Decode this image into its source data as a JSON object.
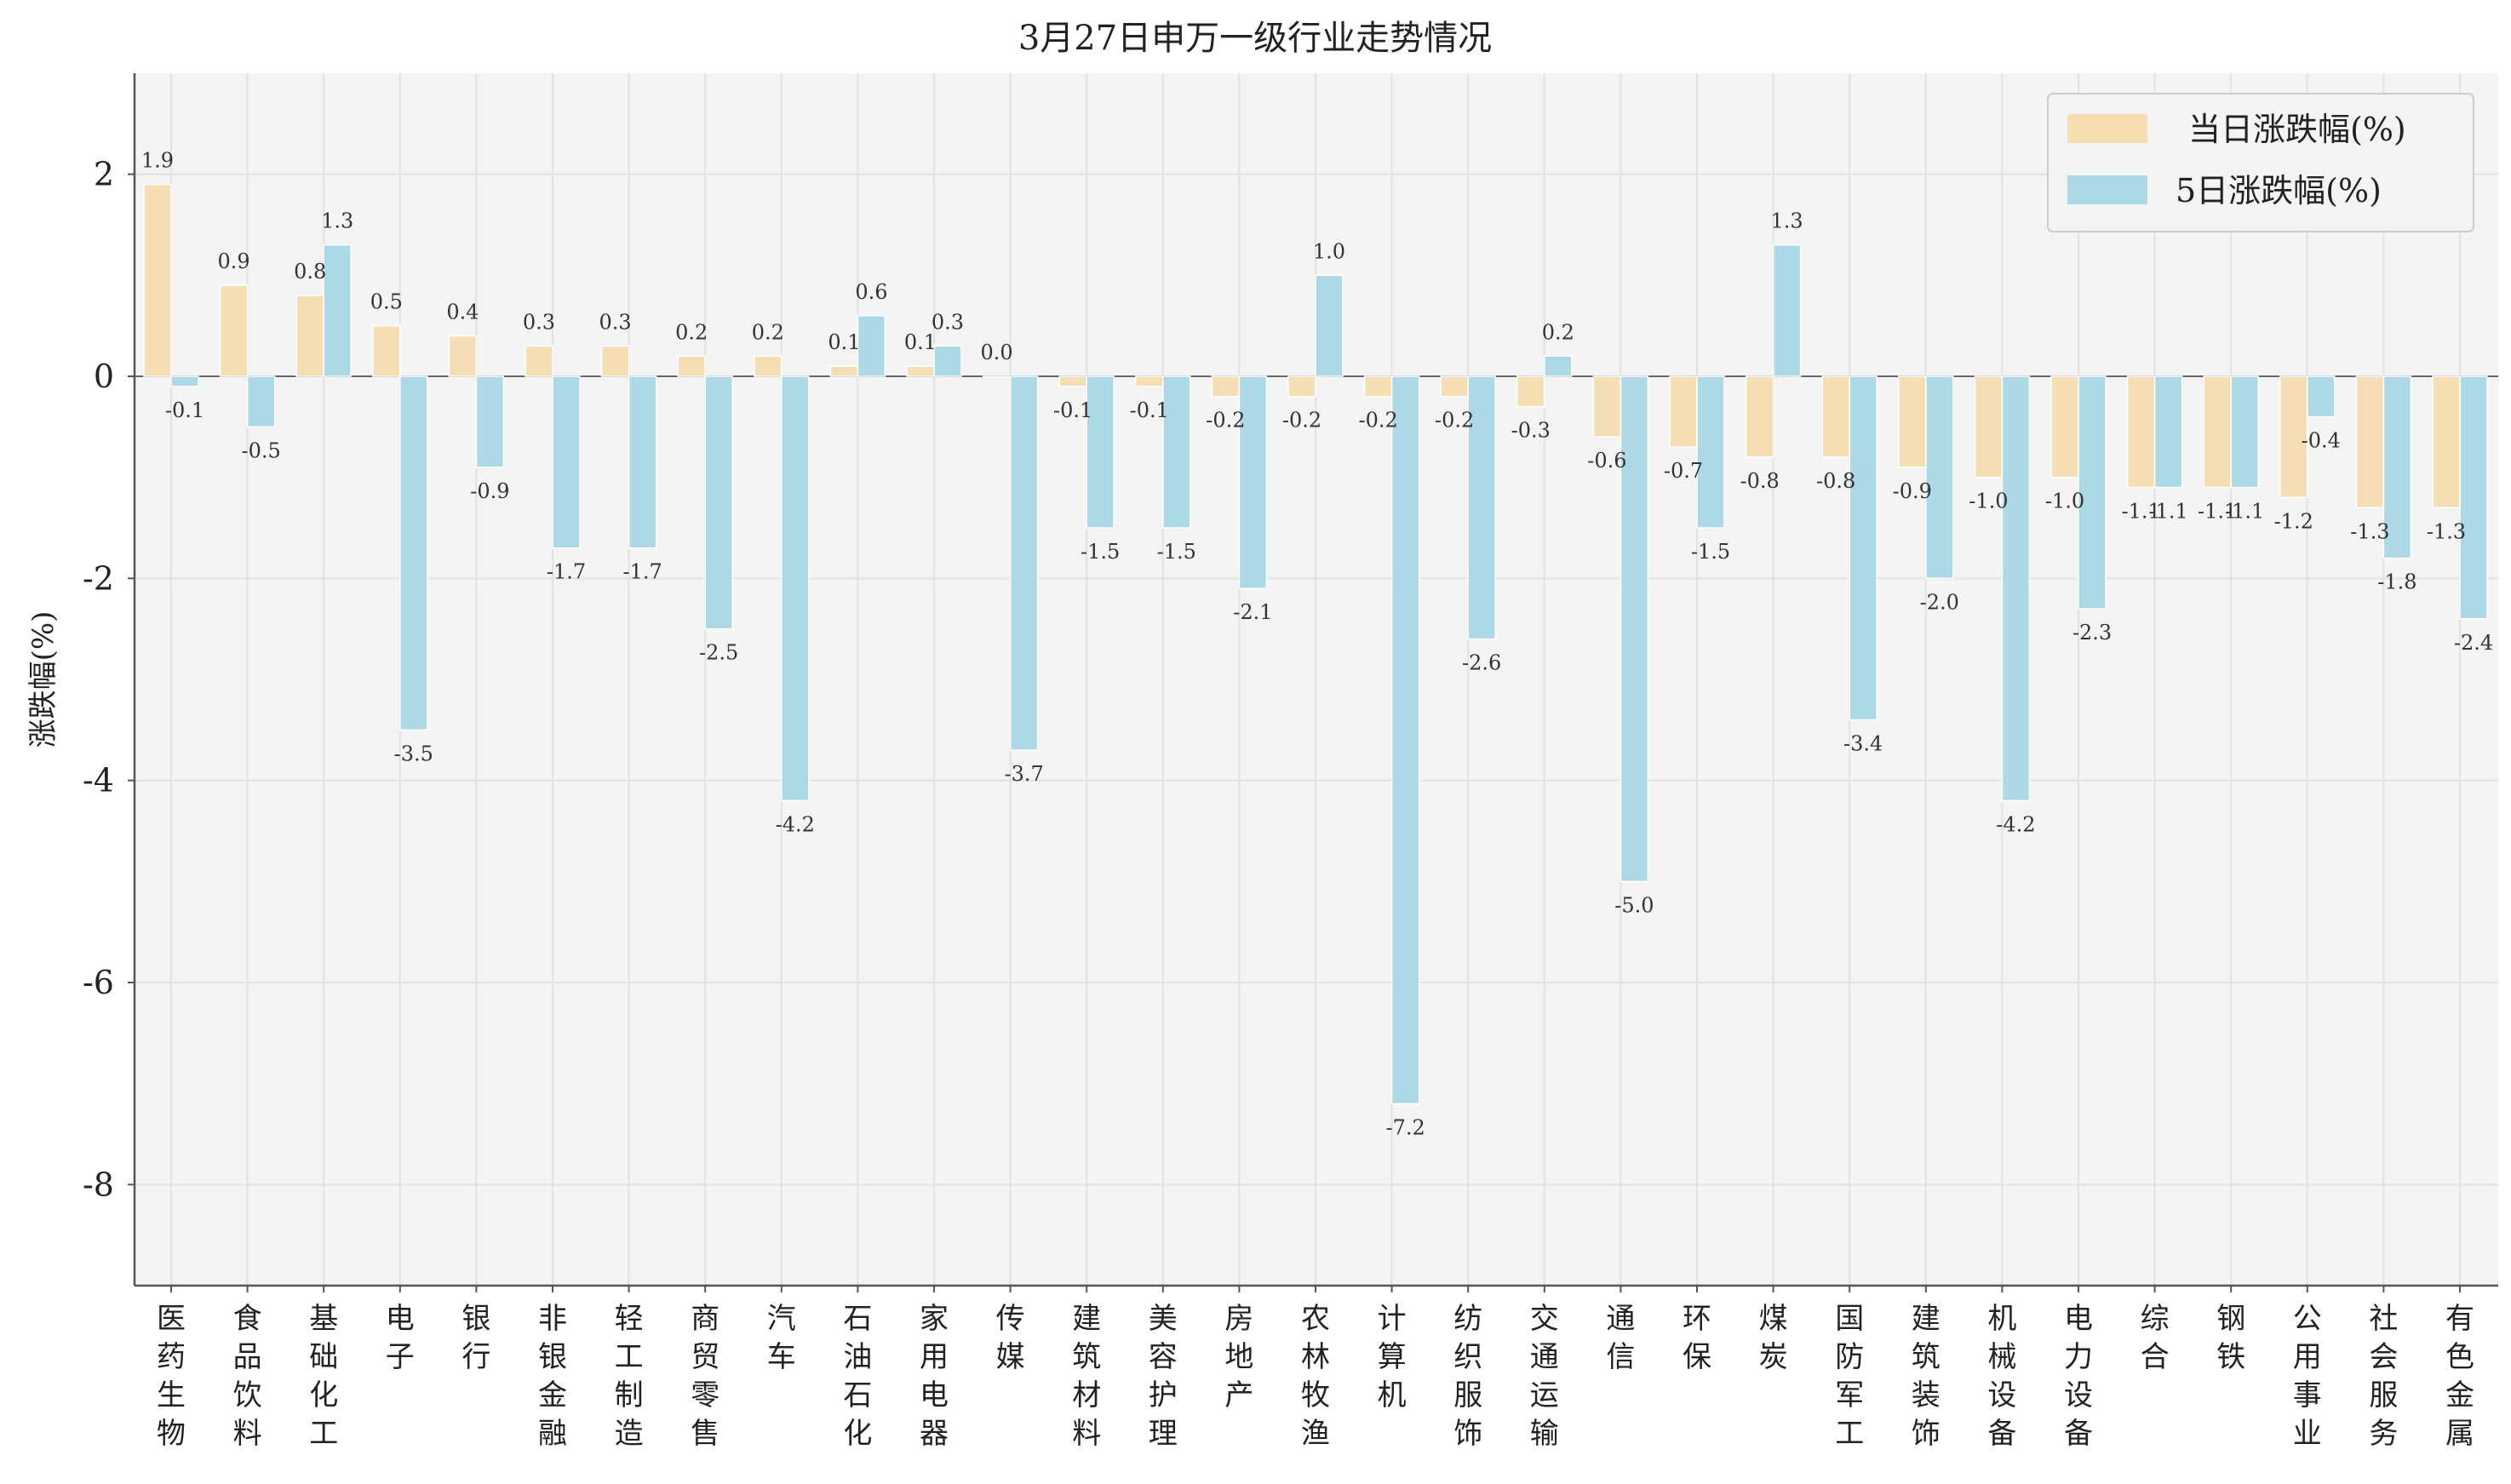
{
  "chart_data": {
    "type": "bar",
    "title": "3月27日申万一级行业走势情况",
    "ylabel": "涨跌幅(%)",
    "xlabel": "",
    "ylim": [
      -9,
      3
    ],
    "yticks": [
      2,
      0,
      -2,
      -4,
      -6,
      -8
    ],
    "ytick_labels": [
      "2",
      "0",
      "-2",
      "-4",
      "-6",
      "-8"
    ],
    "grid": true,
    "legend_position": "top-right",
    "categories": [
      "医药生物",
      "食品饮料",
      "基础化工",
      "电子",
      "银行",
      "非银金融",
      "轻工制造",
      "商贸零售",
      "汽车",
      "石油石化",
      "家用电器",
      "传媒",
      "建筑材料",
      "美容护理",
      "房地产",
      "农林牧渔",
      "计算机",
      "纺织服饰",
      "交通运输",
      "通信",
      "环保",
      "煤炭",
      "国防军工",
      "建筑装饰",
      "机械设备",
      "电力设备",
      "综合",
      "钢铁",
      "公用事业",
      "社会服务",
      "有色金属"
    ],
    "series": [
      {
        "name": "当日涨跌幅(%)",
        "color": "#f5deb3",
        "values": [
          1.9,
          0.9,
          0.8,
          0.5,
          0.4,
          0.3,
          0.3,
          0.2,
          0.2,
          0.1,
          0.1,
          0.0,
          -0.1,
          -0.1,
          -0.2,
          -0.2,
          -0.2,
          -0.2,
          -0.3,
          -0.6,
          -0.7,
          -0.8,
          -0.8,
          -0.9,
          -1.0,
          -1.0,
          -1.1,
          -1.1,
          -1.2,
          -1.3,
          -1.3
        ]
      },
      {
        "name": "5日涨跌幅(%)",
        "color": "#add8e6",
        "values": [
          -0.1,
          -0.5,
          1.3,
          -3.5,
          -0.9,
          -1.7,
          -1.7,
          -2.5,
          -4.2,
          0.6,
          0.3,
          -3.7,
          -1.5,
          -1.5,
          -2.1,
          1.0,
          -7.2,
          -2.6,
          0.2,
          -5.0,
          -1.5,
          1.3,
          -3.4,
          -2.0,
          -4.2,
          -2.3,
          -1.1,
          -1.1,
          -0.4,
          -1.8,
          -2.4
        ]
      }
    ]
  }
}
